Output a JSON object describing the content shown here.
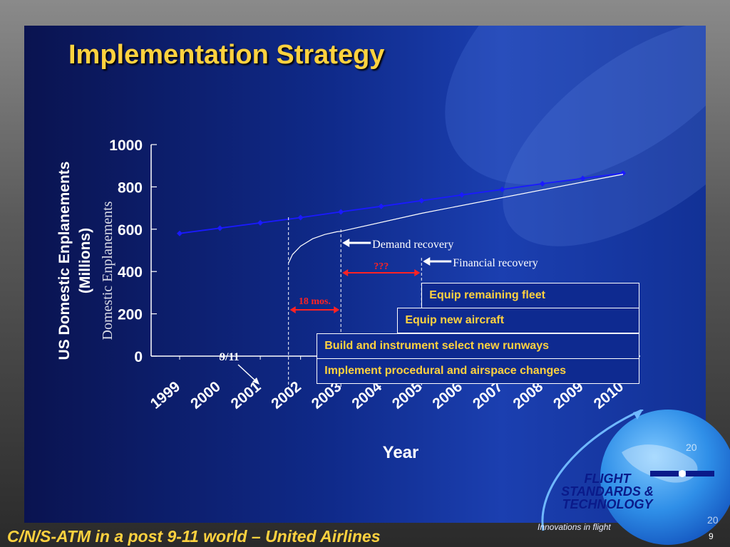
{
  "slide": {
    "title": "Implementation Strategy",
    "footer": "C/N/S-ATM in a post 9-11 world – United Airlines",
    "page_number": "9"
  },
  "chart_data": {
    "type": "line",
    "title": "",
    "ylabel": "US Domestic Enplanements (Millions)",
    "ylabel_line1": "US Domestic Enplanements",
    "ylabel_line2": "(Millions)",
    "ylabel_overlay": "Domestic Enplanements",
    "xlabel": "Year",
    "ylim": [
      0,
      1000
    ],
    "y_ticks": [
      "0",
      "200",
      "400",
      "600",
      "800",
      "1000"
    ],
    "x_ticks": [
      "1999",
      "2000",
      "2001",
      "2002",
      "2003",
      "2004",
      "2005",
      "2006",
      "2007",
      "2008",
      "2009",
      "2010"
    ],
    "series": [
      {
        "name": "",
        "color": "#1a1aff",
        "marker": "diamond",
        "x": [
          1999,
          2000,
          2001,
          2002,
          2003,
          2004,
          2005,
          2006,
          2007,
          2008,
          2009,
          2010
        ],
        "values": [
          580,
          605,
          630,
          655,
          682,
          708,
          735,
          762,
          788,
          815,
          840,
          865
        ]
      },
      {
        "name": "",
        "color": "#ffffff",
        "x": [
          2001.7,
          2001.8,
          2002.0,
          2002.3,
          2002.6,
          2002.9,
          2003.0,
          2005.0,
          2010.0
        ],
        "values": [
          440,
          480,
          520,
          555,
          575,
          588,
          590,
          675,
          860
        ]
      }
    ],
    "annotations": {
      "sept11_label": "9/11",
      "demand_recovery": "Demand recovery",
      "financial_recovery": "Financial recovery",
      "months_label": "18 mos.",
      "unknown_label": "???"
    },
    "implementation_bars": [
      {
        "label": "Equip remaining fleet",
        "start": 2005.0
      },
      {
        "label": "Equip new aircraft",
        "start": 2004.4
      },
      {
        "label": "Build and instrument select new runways",
        "start": 2002.4
      },
      {
        "label": "Implement procedural and airspace changes",
        "start": 2002.4
      }
    ],
    "bars_end": 2010.4,
    "grid": false,
    "legend": "none"
  },
  "logo": {
    "line1": "FLIGHT",
    "line2": "STANDARDS &",
    "line3": "TECHNOLOGY",
    "tagline": "Innovations in flight",
    "globe_mark": "20"
  },
  "colors": {
    "title": "#ffd23f",
    "background": "#0f2a8a",
    "accent_red": "#ff2222"
  }
}
